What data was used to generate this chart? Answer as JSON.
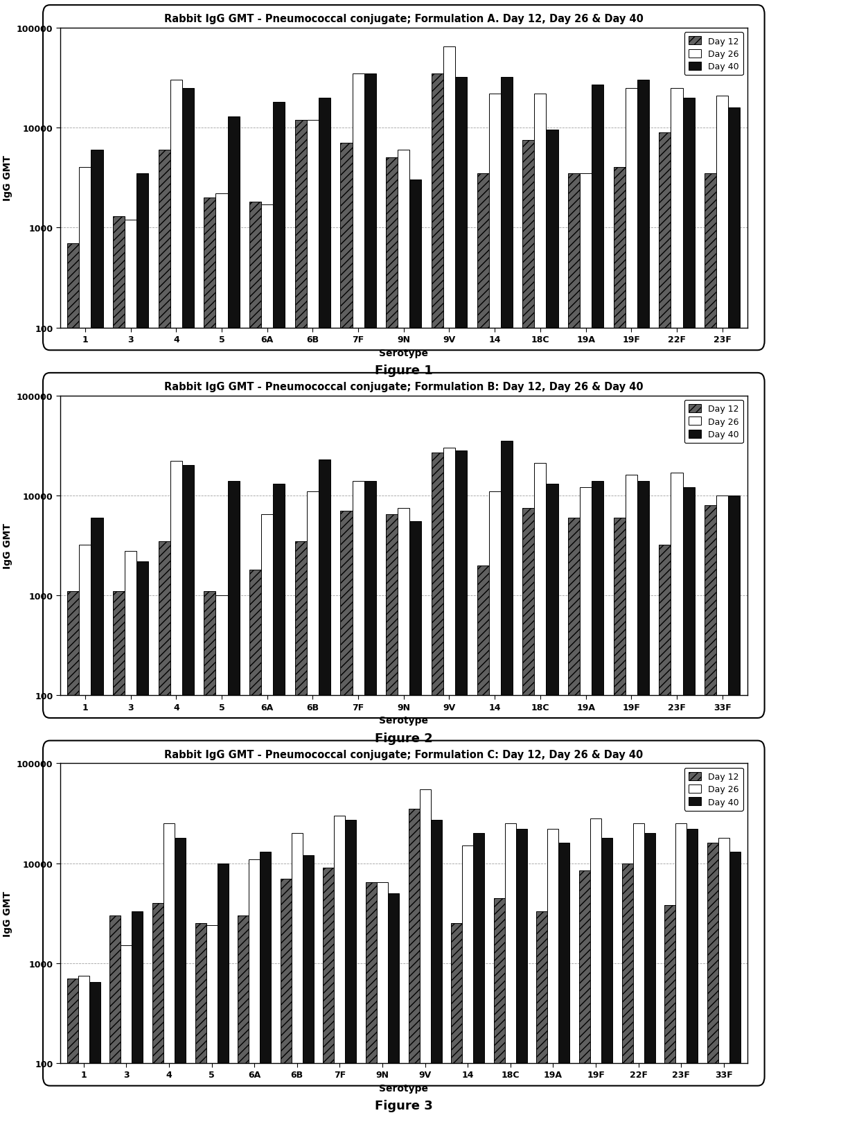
{
  "fig1": {
    "title": "Rabbit IgG GMT - Pneumococcal conjugate; Formulation A. Day 12, Day 26 & Day 40",
    "serotypes": [
      "1",
      "3",
      "4",
      "5",
      "6A",
      "6B",
      "7F",
      "9N",
      "9V",
      "14",
      "18C",
      "19A",
      "19F",
      "22F",
      "23F"
    ],
    "day12": [
      700,
      1300,
      6000,
      2000,
      1800,
      12000,
      7000,
      5000,
      35000,
      3500,
      7500,
      3500,
      4000,
      9000,
      3500
    ],
    "day26": [
      4000,
      1200,
      30000,
      2200,
      1700,
      12000,
      35000,
      6000,
      65000,
      22000,
      22000,
      3500,
      25000,
      25000,
      21000
    ],
    "day40": [
      6000,
      3500,
      25000,
      13000,
      18000,
      20000,
      35000,
      3000,
      32000,
      32000,
      9500,
      27000,
      30000,
      20000,
      16000
    ],
    "xlabel": "Serotype",
    "ylabel": "IgG GMT",
    "ylim": [
      100,
      100000
    ],
    "figure_label": "Figure 1"
  },
  "fig2": {
    "title": "Rabbit IgG GMT - Pneumococcal conjugate; Formulation B: Day 12, Day 26 & Day 40",
    "serotypes": [
      "1",
      "3",
      "4",
      "5",
      "6A",
      "6B",
      "7F",
      "9N",
      "9V",
      "14",
      "18C",
      "19A",
      "19F",
      "23F",
      "33F"
    ],
    "day12": [
      1100,
      1100,
      3500,
      1100,
      1800,
      3500,
      7000,
      6500,
      27000,
      2000,
      7500,
      6000,
      6000,
      3200,
      8000
    ],
    "day26": [
      3200,
      2800,
      22000,
      1000,
      6500,
      11000,
      14000,
      7500,
      30000,
      11000,
      21000,
      12000,
      16000,
      17000,
      10000
    ],
    "day40": [
      6000,
      2200,
      20000,
      14000,
      13000,
      23000,
      14000,
      5500,
      28000,
      35000,
      13000,
      14000,
      14000,
      12000,
      10000
    ],
    "xlabel": "Serotype",
    "ylabel": "IgG GMT",
    "ylim": [
      100,
      100000
    ],
    "figure_label": "Figure 2"
  },
  "fig3": {
    "title": "Rabbit IgG GMT - Pneumococcal conjugate; Formulation C: Day 12, Day 26 & Day 40",
    "serotypes": [
      "1",
      "3",
      "4",
      "5",
      "6A",
      "6B",
      "7F",
      "9N",
      "9V",
      "14",
      "18C",
      "19A",
      "19F",
      "22F",
      "23F",
      "33F"
    ],
    "day12": [
      700,
      3000,
      4000,
      2500,
      3000,
      7000,
      9000,
      6500,
      35000,
      2500,
      4500,
      3300,
      8500,
      10000,
      3800,
      16000
    ],
    "day26": [
      750,
      1500,
      25000,
      2400,
      11000,
      20000,
      30000,
      6500,
      55000,
      15000,
      25000,
      22000,
      28000,
      25000,
      25000,
      18000
    ],
    "day40": [
      650,
      3300,
      18000,
      10000,
      13000,
      12000,
      27000,
      5000,
      27000,
      20000,
      22000,
      16000,
      18000,
      20000,
      22000,
      13000
    ],
    "xlabel": "Serotype",
    "ylabel": "IgG GMT",
    "ylim": [
      100,
      100000
    ],
    "figure_label": "Figure 3"
  },
  "bar_colors": [
    "#606060",
    "#ffffff",
    "#101010"
  ],
  "bar_hatches": [
    "///",
    "",
    ""
  ],
  "legend_labels": [
    "Day 12",
    "Day 26",
    "Day 40"
  ],
  "edge_color": "#000000",
  "background_color": "#ffffff",
  "title_fontsize": 10.5,
  "label_fontsize": 10,
  "tick_fontsize": 9,
  "legend_fontsize": 9,
  "figure_label_fontsize": 13
}
